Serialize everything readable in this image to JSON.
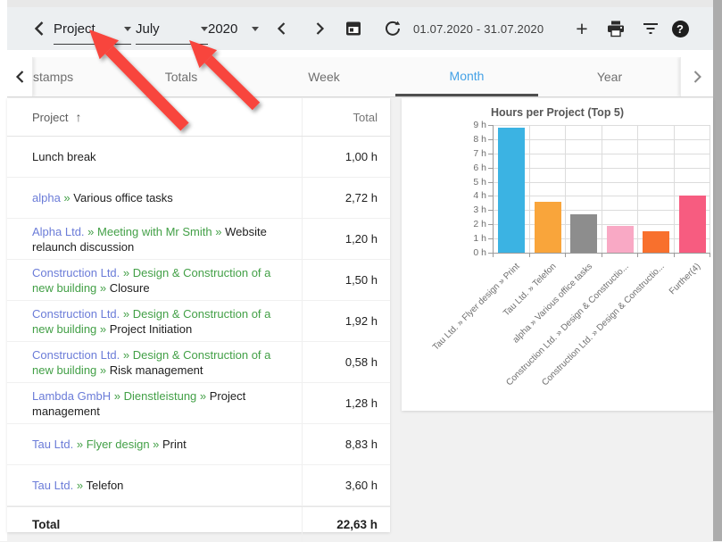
{
  "toolbar": {
    "back_icon": "chevron-left",
    "project_dropdown": {
      "value": "Project"
    },
    "month_dropdown": {
      "value": "July"
    },
    "year_dropdown": {
      "value": "2020"
    },
    "prev_icon": "chevron-left",
    "next_icon": "chevron-right",
    "calendar_icon": "calendar",
    "refresh_icon": "refresh",
    "date_range": "01.07.2020 - 31.07.2020",
    "add_icon_glyph": "+",
    "print_icon": "printer",
    "filter_icon": "filter-lines",
    "help_icon_glyph": "?"
  },
  "tabs": {
    "items": [
      {
        "label": "stamps",
        "active": false
      },
      {
        "label": "Totals",
        "active": false
      },
      {
        "label": "Week",
        "active": false
      },
      {
        "label": "Month",
        "active": true
      },
      {
        "label": "Year",
        "active": false
      }
    ]
  },
  "table": {
    "header": {
      "project": "Project",
      "sort_icon": "↑",
      "total": "Total"
    },
    "separator": "»",
    "rows": [
      {
        "segments": [
          "Lunch break"
        ],
        "total": "1,00 h"
      },
      {
        "segments": [
          "alpha",
          "Various office tasks"
        ],
        "total": "2,72 h"
      },
      {
        "segments": [
          "Alpha Ltd.",
          "Meeting with Mr Smith",
          "Website relaunch discussion"
        ],
        "total": "1,20 h"
      },
      {
        "segments": [
          "Construction Ltd.",
          "Design & Construction of a new building",
          "Closure"
        ],
        "total": "1,50 h"
      },
      {
        "segments": [
          "Construction Ltd.",
          "Design & Construction of a new building",
          "Project Initiation"
        ],
        "total": "1,92 h"
      },
      {
        "segments": [
          "Construction Ltd.",
          "Design & Construction of a new building",
          "Risk management"
        ],
        "total": "0,58 h"
      },
      {
        "segments": [
          "Lambda GmbH",
          "Dienstleistung",
          "Project management"
        ],
        "total": "1,28 h"
      },
      {
        "segments": [
          "Tau Ltd.",
          "Flyer design",
          "Print"
        ],
        "total": "8,83 h"
      },
      {
        "segments": [
          "Tau Ltd.",
          "Telefon"
        ],
        "total": "3,60 h"
      }
    ],
    "footer": {
      "label": "Total",
      "total": "22,63 h"
    }
  },
  "chart_data": {
    "type": "bar",
    "title": "Hours per Project (Top 5)",
    "categories": [
      "Tau Ltd. » Flyer design » Print",
      "Tau Ltd. » Telefon",
      "alpha » Various office tasks",
      "Construction Ltd. » Design & Constructio...",
      "Construction Ltd. » Design & Constructio...",
      "Further(4)"
    ],
    "values": [
      8.83,
      3.6,
      2.72,
      1.92,
      1.5,
      4.06
    ],
    "bar_colors": [
      "#3bb3e3",
      "#f9a53b",
      "#8d8d8d",
      "#f9a9c5",
      "#f8702d",
      "#f75c80"
    ],
    "ylim": [
      0,
      9
    ],
    "ytick_step": 1,
    "ytick_suffix": " h",
    "grid": true,
    "legend": false
  },
  "colors": {
    "active_tab_blue": "#45a2e6",
    "link_blue": "#6b7cd8",
    "link_green": "#43a047",
    "annotation_arrow_red": "#f8453e",
    "toolbar_bg": "#eceff1"
  },
  "annotations": {
    "arrows": [
      {
        "points_at": "project-dropdown"
      },
      {
        "points_at": "month-dropdown"
      }
    ]
  }
}
